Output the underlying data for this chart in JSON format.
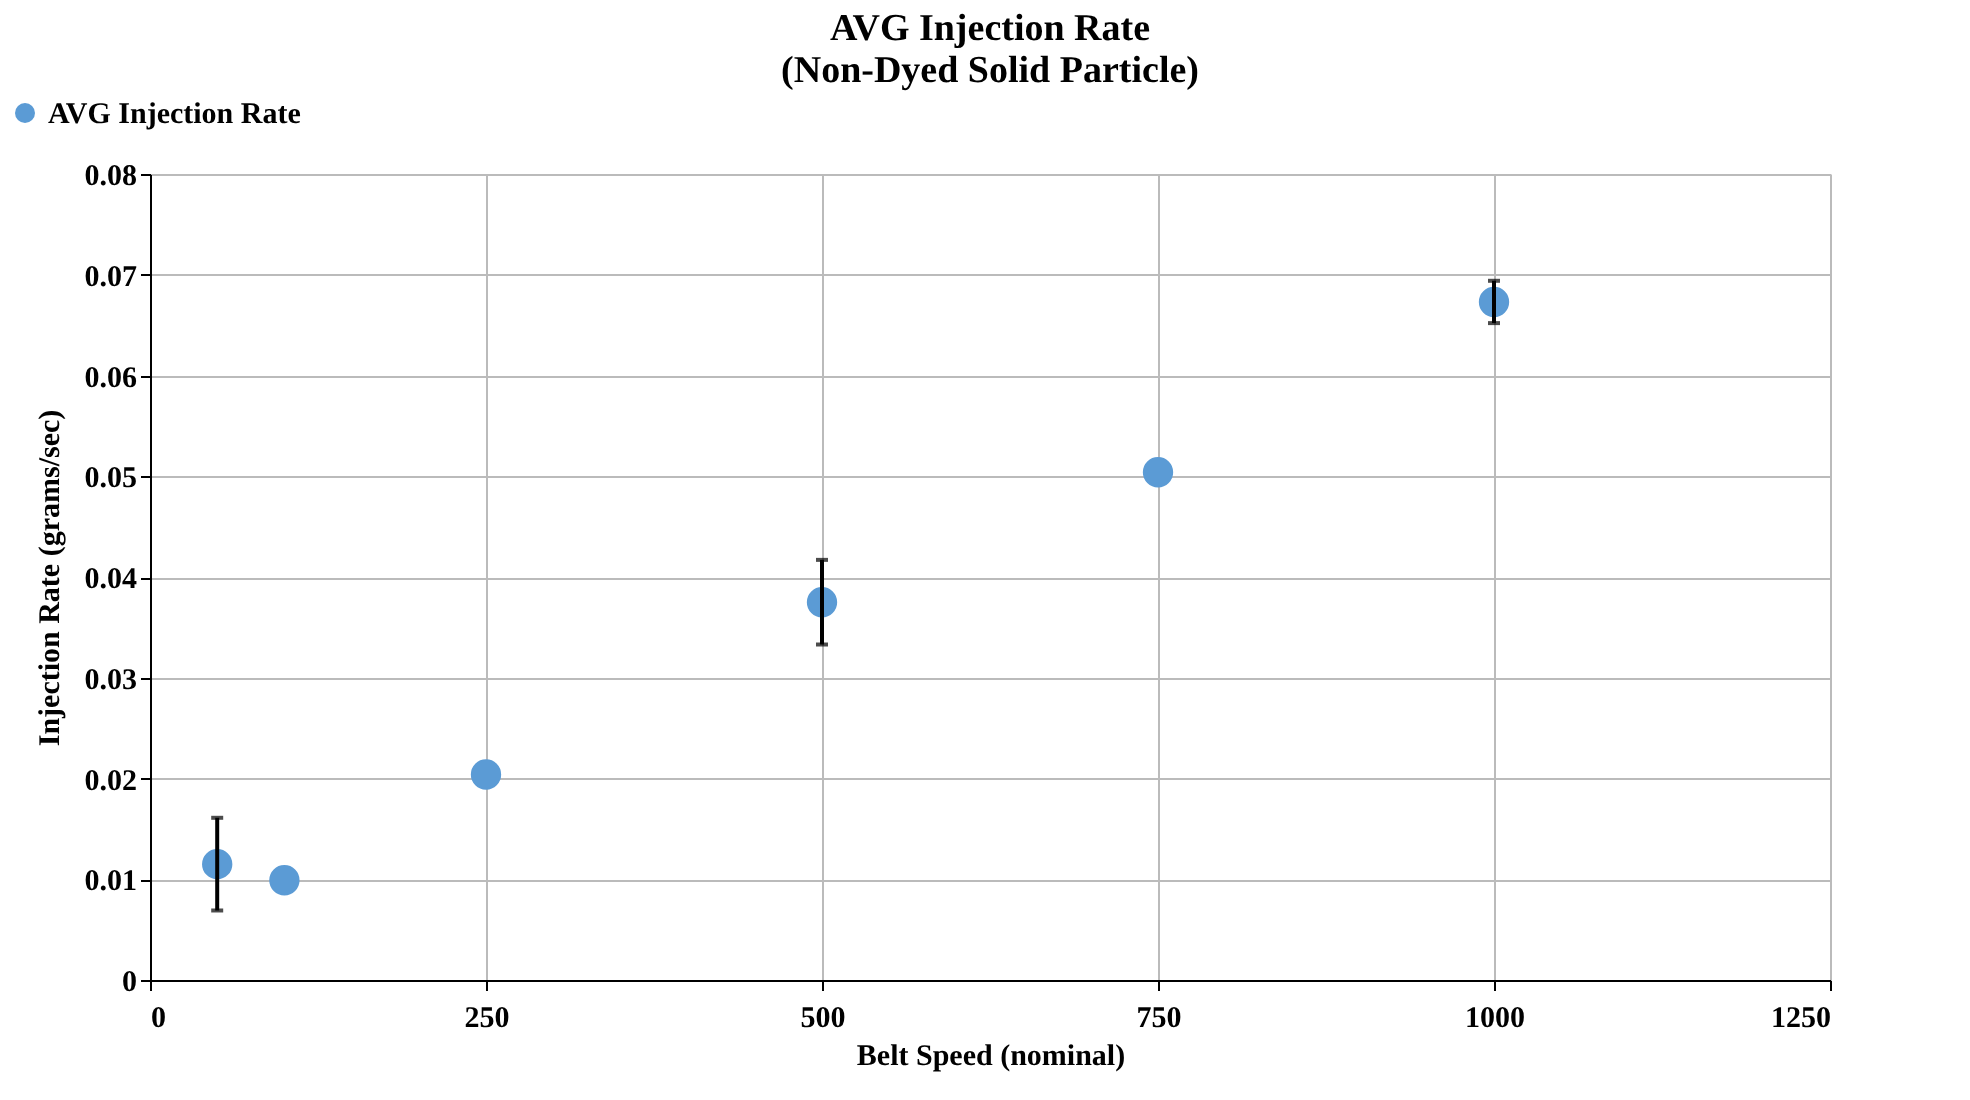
{
  "chart_data": {
    "type": "scatter",
    "title": [
      "AVG Injection Rate",
      "(Non-Dyed Solid Particle)"
    ],
    "xlabel": "Belt Speed (nominal)",
    "ylabel": "Injection Rate (grams/sec)",
    "x": [
      50,
      100,
      250,
      500,
      750,
      1000
    ],
    "series": [
      {
        "name": "AVG Injection Rate",
        "color": "#5b9bd5",
        "values": [
          0.0115,
          0.0099,
          0.0204,
          0.0375,
          0.0504,
          0.0673
        ],
        "errors": [
          0.0046,
          null,
          null,
          0.0042,
          null,
          0.0021
        ]
      }
    ],
    "xlim": [
      0,
      1250
    ],
    "xticks": [
      0,
      250,
      500,
      750,
      1000,
      1250
    ],
    "ylim": [
      0,
      0.08
    ],
    "yticks": [
      0,
      0.01,
      0.02,
      0.03,
      0.04,
      0.05,
      0.06,
      0.07,
      0.08
    ],
    "grid": true,
    "legend": "top left",
    "marker": "circle"
  }
}
